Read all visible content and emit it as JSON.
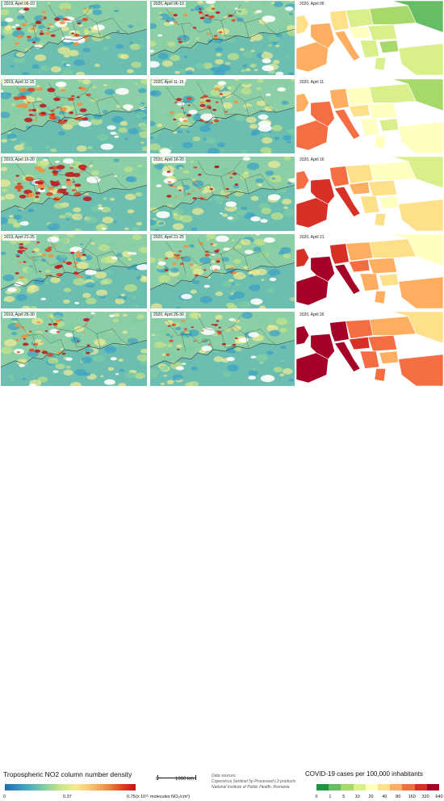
{
  "rows": [
    {
      "no2_2019_label": "2019, April 06-10",
      "no2_2020_label": "2020, April 06-10",
      "covid_label": "2020, April 06",
      "intensity_2019": 0.55,
      "intensity_2020": 0.35
    },
    {
      "no2_2019_label": "2019, April 11-15",
      "no2_2020_label": "2020, April 11-15",
      "covid_label": "2020, April 11",
      "intensity_2019": 0.8,
      "intensity_2020": 0.45
    },
    {
      "no2_2019_label": "2019, April 16-20",
      "no2_2020_label": "2020, April 16-20",
      "covid_label": "2020, April 16",
      "intensity_2019": 0.9,
      "intensity_2020": 0.35
    },
    {
      "no2_2019_label": "2019, April 21-25",
      "no2_2020_label": "2020, April 21-25",
      "covid_label": "2020, April 21",
      "intensity_2019": 0.6,
      "intensity_2020": 0.4
    },
    {
      "no2_2019_label": "2019, April 26-30",
      "no2_2020_label": "2020, April 26-30",
      "covid_label": "2020, April 26",
      "intensity_2019": 0.5,
      "intensity_2020": 0.3
    }
  ],
  "no2_legend": {
    "title": "Tropospheric NO2 column number density",
    "tick_min": "0",
    "tick_mid": "0.37",
    "tick_max": "0.75",
    "unit": "(x 10¹⁵ molecules NO₂/cm²)",
    "colors": [
      "#1e6fb0",
      "#3aa0c4",
      "#7fcda3",
      "#c6e48a",
      "#f4ec93",
      "#f9c26a",
      "#f28f3c",
      "#e0401f",
      "#c2101a"
    ]
  },
  "scale_bar": {
    "zero": "0",
    "label": "1000 km"
  },
  "sources": {
    "heading": "Data sources:",
    "line1": "Copernicus Sentinel 5p Processed L3 products",
    "line2": "National Institute of Public Health, Romania"
  },
  "covid_legend": {
    "title": "COVID-19 cases per 100,000 inhabitants",
    "ticks": [
      "0",
      "1",
      "5",
      "10",
      "20",
      "40",
      "80",
      "160",
      "320",
      "640"
    ],
    "colors": [
      "#1a9641",
      "#66bd63",
      "#a6d96a",
      "#d9ef8b",
      "#ffffbf",
      "#fee08b",
      "#fdae61",
      "#f46d43",
      "#d73027",
      "#a50026"
    ]
  }
}
